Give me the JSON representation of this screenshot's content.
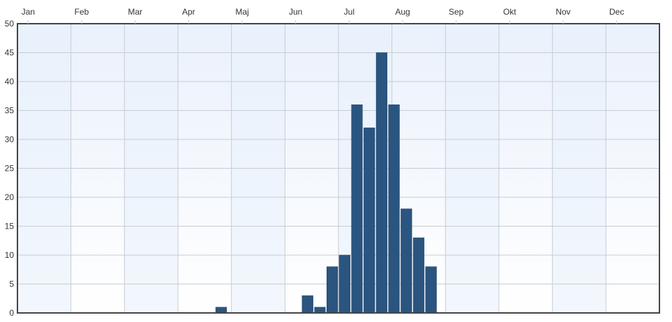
{
  "chart_data": {
    "type": "bar",
    "title": "",
    "xlabel": "",
    "ylabel": "",
    "months": [
      "Jan",
      "Feb",
      "Mar",
      "Apr",
      "Maj",
      "Jun",
      "Jul",
      "Aug",
      "Sep",
      "Okt",
      "Nov",
      "Dec"
    ],
    "x_unit": "week",
    "x": [
      1,
      2,
      3,
      4,
      5,
      6,
      7,
      8,
      9,
      10,
      11,
      12,
      13,
      14,
      15,
      16,
      17,
      18,
      19,
      20,
      21,
      22,
      23,
      24,
      25,
      26,
      27,
      28,
      29,
      30,
      31,
      32,
      33,
      34,
      35,
      36,
      37,
      38,
      39,
      40,
      41,
      42,
      43,
      44,
      45,
      46,
      47,
      48,
      49,
      50,
      51,
      52
    ],
    "values": [
      0,
      0,
      0,
      0,
      0,
      0,
      0,
      0,
      0,
      0,
      0,
      0,
      0,
      0,
      0,
      0,
      1,
      0,
      0,
      0,
      0,
      0,
      0,
      3,
      1,
      8,
      10,
      36,
      32,
      45,
      36,
      18,
      13,
      8,
      0,
      0,
      0,
      0,
      0,
      0,
      0,
      0,
      0,
      0,
      0,
      0,
      0,
      0,
      0,
      0,
      0,
      0
    ],
    "yticks": [
      0,
      5,
      10,
      15,
      20,
      25,
      30,
      35,
      40,
      45,
      50
    ],
    "ylim": [
      0,
      50
    ],
    "grid": true,
    "legend": "none",
    "colors": {
      "bar": "#2a5580",
      "bar_edge": "#1e4266",
      "grid": "#c8ccd2",
      "frame": "#444444",
      "band_dark": "#e8f0fb",
      "band_light": "#f6f9fe"
    }
  }
}
